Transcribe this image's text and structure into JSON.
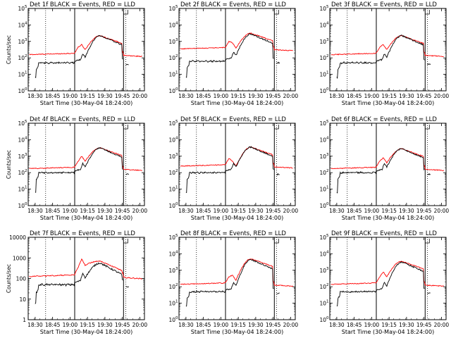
{
  "chart_data": {
    "type": "line",
    "shared": {
      "xlabel": "Start Time (30-May-04 18:24:00)",
      "ylabel": "Counts/sec",
      "x_ticks": [
        "18:30",
        "18:45",
        "19:00",
        "19:15",
        "19:30",
        "19:45",
        "20:00"
      ],
      "x_tick_minutes": [
        6,
        21,
        36,
        51,
        66,
        81,
        96
      ],
      "xlim_minutes": [
        0,
        100
      ],
      "series_names": [
        "Events",
        "LLD"
      ],
      "series_colors": [
        "#000000",
        "#ff0000"
      ],
      "vlines_dotted_minutes": [
        15,
        84
      ],
      "vline_solid_minutes": 40,
      "vline_marker_minute": 82
    },
    "panels": [
      {
        "title": "Det 1f BLACK = Events, RED = LLD",
        "ylim_log10": [
          0,
          5
        ],
        "ytick_exps": [
          0,
          1,
          2,
          3,
          4,
          5
        ],
        "ytick_style": "exp",
        "events_base": 1.7,
        "events_peak": 3.35,
        "lld_base": 2.2,
        "lld_peak": 3.35,
        "lld_bump": 2.8
      },
      {
        "title": "Det 2f BLACK = Events, RED = LLD",
        "ylim_log10": [
          0,
          5
        ],
        "ytick_exps": [
          0,
          1,
          2,
          3,
          4,
          5
        ],
        "ytick_style": "exp",
        "events_base": 1.8,
        "events_peak": 3.45,
        "lld_base": 2.55,
        "lld_peak": 3.5,
        "lld_bump": 2.9
      },
      {
        "title": "Det 3f BLACK = Events, RED = LLD",
        "ylim_log10": [
          0,
          5
        ],
        "ytick_exps": [
          0,
          1,
          2,
          3,
          4,
          5
        ],
        "ytick_style": "exp",
        "events_base": 1.7,
        "events_peak": 3.35,
        "lld_base": 2.2,
        "lld_peak": 3.35,
        "lld_bump": 2.8
      },
      {
        "title": "Det 4f BLACK = Events, RED = LLD",
        "ylim_log10": [
          0,
          5
        ],
        "ytick_exps": [
          0,
          1,
          2,
          3,
          4,
          5
        ],
        "ytick_style": "exp",
        "events_base": 2.0,
        "events_peak": 3.5,
        "lld_base": 2.25,
        "lld_peak": 3.5,
        "lld_bump": 3.0
      },
      {
        "title": "Det 5f BLACK = Events, RED = LLD",
        "ylim_log10": [
          0,
          5
        ],
        "ytick_exps": [
          0,
          1,
          2,
          3,
          4,
          5
        ],
        "ytick_style": "exp",
        "events_base": 2.0,
        "events_peak": 3.55,
        "lld_base": 2.4,
        "lld_peak": 3.55,
        "lld_bump": 2.7
      },
      {
        "title": "Det 6f BLACK = Events, RED = LLD",
        "ylim_log10": [
          0,
          5
        ],
        "ytick_exps": [
          0,
          1,
          2,
          3,
          4,
          5
        ],
        "ytick_style": "exp",
        "events_base": 2.0,
        "events_peak": 3.45,
        "lld_base": 2.25,
        "lld_peak": 3.45,
        "lld_bump": 2.9
      },
      {
        "title": "Det 7f BLACK = Events, RED = LLD",
        "ylim_log10": [
          0,
          4
        ],
        "ytick_exps": [
          0,
          1,
          2,
          3,
          4
        ],
        "ytick_style": "plain",
        "ytick_labels": [
          "1",
          "10",
          "100",
          "1000",
          "10000"
        ],
        "events_base": 1.7,
        "events_peak": 2.75,
        "lld_base": 2.1,
        "lld_peak": 2.85,
        "lld_bump": 2.95
      },
      {
        "title": "Det 8f BLACK = Events, RED = LLD",
        "ylim_log10": [
          0,
          5
        ],
        "ytick_exps": [
          0,
          1,
          2,
          3,
          4,
          5
        ],
        "ytick_style": "exp",
        "events_base": 1.7,
        "events_peak": 3.65,
        "lld_base": 2.15,
        "lld_peak": 3.7,
        "lld_bump": 2.7
      },
      {
        "title": "Det 9f BLACK = Events, RED = LLD",
        "ylim_log10": [
          0,
          5
        ],
        "ytick_exps": [
          0,
          1,
          2,
          3,
          4,
          5
        ],
        "ytick_style": "exp",
        "events_base": 1.7,
        "events_peak": 3.5,
        "lld_base": 2.15,
        "lld_peak": 3.55,
        "lld_bump": 2.9
      }
    ]
  }
}
